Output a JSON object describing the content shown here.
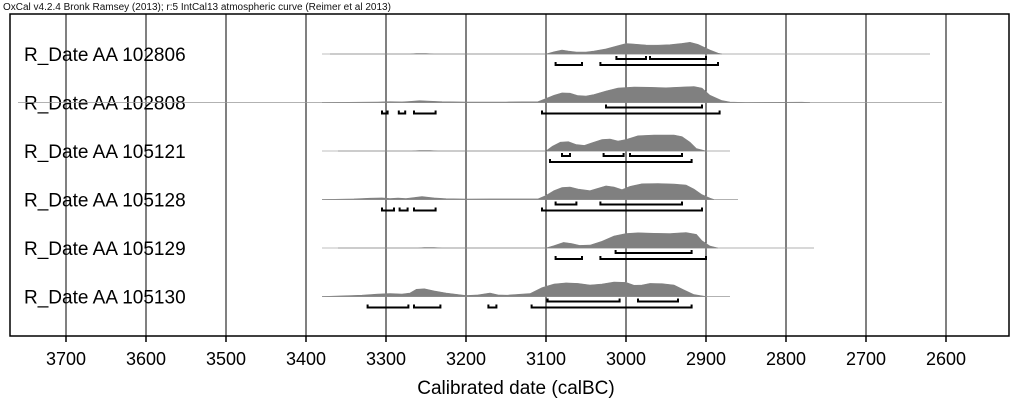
{
  "header": "OxCal v4.2.4 Bronk Ramsey (2013); r:5 IntCal13 atmospheric curve (Reimer et al 2013)",
  "chart_data": {
    "type": "radiocarbon-calibration",
    "xlabel": "Calibrated date (calBC)",
    "x_range_calBC": [
      3770,
      2640
    ],
    "x_ticks": [
      "3700",
      "3600",
      "3500",
      "3400",
      "3300",
      "3200",
      "3100",
      "3000",
      "2900",
      "2800",
      "2700",
      "2600"
    ],
    "x_tick_values": [
      3700,
      3600,
      3500,
      3400,
      3300,
      3200,
      3100,
      3000,
      2900,
      2800,
      2700,
      2600
    ],
    "grid_vertical": true,
    "colors": {
      "distribution": "#808080",
      "baseline": "#999999",
      "bracket": "#000000",
      "grid": "#000000"
    },
    "samples": [
      {
        "label": "R_Date AA 102806",
        "baseline_calBC": [
          3370,
          2620
        ],
        "profile": [
          [
            3380,
            0
          ],
          [
            3270,
            0
          ],
          [
            3262,
            0.03
          ],
          [
            3250,
            0.03
          ],
          [
            3240,
            0
          ],
          [
            3100,
            0
          ],
          [
            3090,
            0.14
          ],
          [
            3080,
            0.25
          ],
          [
            3072,
            0.18
          ],
          [
            3062,
            0.12
          ],
          [
            3050,
            0.12
          ],
          [
            3040,
            0.18
          ],
          [
            3025,
            0.32
          ],
          [
            3010,
            0.52
          ],
          [
            3000,
            0.65
          ],
          [
            2990,
            0.62
          ],
          [
            2975,
            0.56
          ],
          [
            2960,
            0.55
          ],
          [
            2945,
            0.58
          ],
          [
            2930,
            0.66
          ],
          [
            2920,
            0.73
          ],
          [
            2910,
            0.6
          ],
          [
            2895,
            0.25
          ],
          [
            2885,
            0.05
          ],
          [
            2880,
            0
          ]
        ],
        "ranges_95": [
          [
            3088,
            3055
          ],
          [
            3032,
            2885
          ]
        ],
        "ranges_68": [
          [
            3012,
            2975
          ],
          [
            2970,
            2900
          ]
        ]
      },
      {
        "label": "R_Date AA 102808",
        "baseline_calBC": [
          3760,
          2605
        ],
        "profile": [
          [
            3380,
            0
          ],
          [
            3330,
            0.02
          ],
          [
            3310,
            0.03
          ],
          [
            3295,
            0.05
          ],
          [
            3280,
            0.04
          ],
          [
            3270,
            0.07
          ],
          [
            3258,
            0.11
          ],
          [
            3245,
            0.08
          ],
          [
            3230,
            0.05
          ],
          [
            3200,
            0.03
          ],
          [
            3150,
            0.03
          ],
          [
            3110,
            0.05
          ],
          [
            3100,
            0.25
          ],
          [
            3090,
            0.45
          ],
          [
            3080,
            0.6
          ],
          [
            3070,
            0.58
          ],
          [
            3060,
            0.43
          ],
          [
            3050,
            0.4
          ],
          [
            3040,
            0.5
          ],
          [
            3025,
            0.72
          ],
          [
            3010,
            0.9
          ],
          [
            2990,
            0.97
          ],
          [
            2970,
            0.95
          ],
          [
            2950,
            0.92
          ],
          [
            2930,
            0.97
          ],
          [
            2915,
            1.0
          ],
          [
            2905,
            0.9
          ],
          [
            2895,
            0.45
          ],
          [
            2880,
            0.12
          ],
          [
            2870,
            0.03
          ],
          [
            2850,
            0
          ],
          [
            2780,
            0.02
          ],
          [
            2770,
            0
          ]
        ],
        "ranges_95": [
          [
            3305,
            3298
          ],
          [
            3284,
            3276
          ],
          [
            3265,
            3238
          ],
          [
            3105,
            2883
          ]
        ],
        "ranges_68": [
          [
            3025,
            2905
          ]
        ]
      },
      {
        "label": "R_Date AA 105121",
        "baseline_calBC": [
          3360,
          2870
        ],
        "profile": [
          [
            3380,
            0
          ],
          [
            3268,
            0
          ],
          [
            3258,
            0.03
          ],
          [
            3245,
            0.03
          ],
          [
            3235,
            0
          ],
          [
            3100,
            0
          ],
          [
            3092,
            0.3
          ],
          [
            3082,
            0.55
          ],
          [
            3072,
            0.58
          ],
          [
            3062,
            0.4
          ],
          [
            3052,
            0.35
          ],
          [
            3042,
            0.52
          ],
          [
            3030,
            0.72
          ],
          [
            3020,
            0.75
          ],
          [
            3010,
            0.62
          ],
          [
            3000,
            0.72
          ],
          [
            2985,
            0.95
          ],
          [
            2965,
            1.0
          ],
          [
            2940,
            1.0
          ],
          [
            2930,
            0.9
          ],
          [
            2920,
            0.55
          ],
          [
            2912,
            0.15
          ],
          [
            2900,
            0
          ]
        ],
        "ranges_95": [
          [
            3095,
            2918
          ]
        ],
        "ranges_68": [
          [
            3080,
            3070
          ],
          [
            3028,
            3003
          ],
          [
            2995,
            2930
          ]
        ]
      },
      {
        "label": "R_Date AA 105128",
        "baseline_calBC": [
          3380,
          2860
        ],
        "profile": [
          [
            3380,
            0
          ],
          [
            3340,
            0.04
          ],
          [
            3320,
            0.08
          ],
          [
            3305,
            0.1
          ],
          [
            3295,
            0.06
          ],
          [
            3285,
            0.09
          ],
          [
            3275,
            0.06
          ],
          [
            3265,
            0.12
          ],
          [
            3255,
            0.18
          ],
          [
            3240,
            0.1
          ],
          [
            3225,
            0.05
          ],
          [
            3200,
            0.03
          ],
          [
            3170,
            0.04
          ],
          [
            3110,
            0.04
          ],
          [
            3100,
            0.25
          ],
          [
            3090,
            0.55
          ],
          [
            3080,
            0.75
          ],
          [
            3070,
            0.78
          ],
          [
            3060,
            0.65
          ],
          [
            3045,
            0.55
          ],
          [
            3035,
            0.7
          ],
          [
            3025,
            0.85
          ],
          [
            3015,
            0.78
          ],
          [
            3005,
            0.62
          ],
          [
            2995,
            0.82
          ],
          [
            2980,
            0.98
          ],
          [
            2960,
            1.0
          ],
          [
            2940,
            0.96
          ],
          [
            2925,
            0.9
          ],
          [
            2915,
            0.65
          ],
          [
            2905,
            0.3
          ],
          [
            2895,
            0.08
          ],
          [
            2890,
            0
          ]
        ],
        "ranges_95": [
          [
            3305,
            3290
          ],
          [
            3283,
            3273
          ],
          [
            3265,
            3238
          ],
          [
            3105,
            2905
          ]
        ],
        "ranges_68": [
          [
            3088,
            3062
          ],
          [
            3032,
            2930
          ]
        ]
      },
      {
        "label": "R_Date AA 105129",
        "baseline_calBC": [
          3360,
          2765
        ],
        "profile": [
          [
            3380,
            0
          ],
          [
            3260,
            0
          ],
          [
            3252,
            0.03
          ],
          [
            3240,
            0.03
          ],
          [
            3230,
            0
          ],
          [
            3100,
            0
          ],
          [
            3090,
            0.15
          ],
          [
            3078,
            0.35
          ],
          [
            3068,
            0.28
          ],
          [
            3058,
            0.16
          ],
          [
            3045,
            0.18
          ],
          [
            3030,
            0.42
          ],
          [
            3015,
            0.75
          ],
          [
            3000,
            0.9
          ],
          [
            2985,
            0.95
          ],
          [
            2965,
            0.92
          ],
          [
            2945,
            0.9
          ],
          [
            2925,
            0.97
          ],
          [
            2912,
            0.85
          ],
          [
            2905,
            0.45
          ],
          [
            2895,
            0.12
          ],
          [
            2885,
            0
          ]
        ],
        "ranges_95": [
          [
            3088,
            3055
          ],
          [
            3032,
            2900
          ]
        ],
        "ranges_68": [
          [
            3013,
            2918
          ]
        ]
      },
      {
        "label": "R_Date AA 105130",
        "baseline_calBC": [
          3380,
          2870
        ],
        "profile": [
          [
            3380,
            0
          ],
          [
            3330,
            0.08
          ],
          [
            3310,
            0.15
          ],
          [
            3295,
            0.18
          ],
          [
            3280,
            0.15
          ],
          [
            3270,
            0.22
          ],
          [
            3262,
            0.45
          ],
          [
            3252,
            0.48
          ],
          [
            3240,
            0.35
          ],
          [
            3225,
            0.22
          ],
          [
            3200,
            0.06
          ],
          [
            3185,
            0.1
          ],
          [
            3170,
            0.22
          ],
          [
            3160,
            0.1
          ],
          [
            3150,
            0.08
          ],
          [
            3120,
            0.18
          ],
          [
            3105,
            0.55
          ],
          [
            3090,
            0.78
          ],
          [
            3075,
            0.85
          ],
          [
            3060,
            0.82
          ],
          [
            3045,
            0.72
          ],
          [
            3030,
            0.78
          ],
          [
            3015,
            0.9
          ],
          [
            3000,
            0.88
          ],
          [
            2990,
            0.7
          ],
          [
            2980,
            0.72
          ],
          [
            2970,
            0.82
          ],
          [
            2955,
            0.8
          ],
          [
            2940,
            0.72
          ],
          [
            2928,
            0.42
          ],
          [
            2915,
            0.12
          ],
          [
            2900,
            0
          ]
        ],
        "ranges_95": [
          [
            3323,
            3272
          ],
          [
            3265,
            3232
          ],
          [
            3172,
            3162
          ],
          [
            3118,
            2918
          ]
        ],
        "ranges_68": [
          [
            3098,
            3008
          ],
          [
            2985,
            2935
          ]
        ]
      }
    ]
  }
}
